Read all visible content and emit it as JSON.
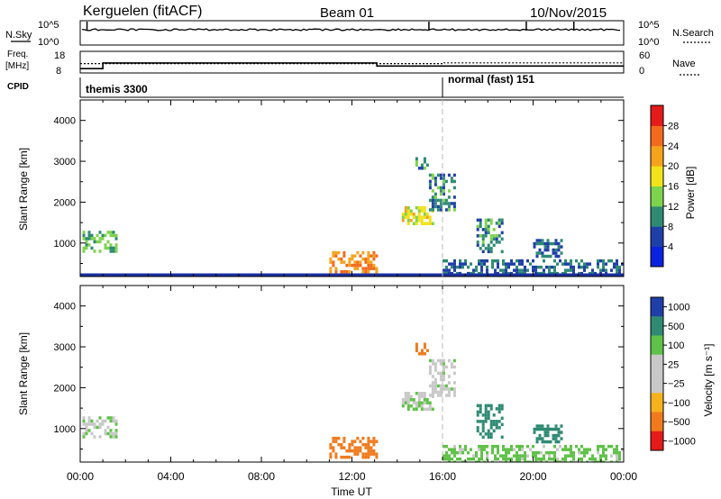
{
  "header": {
    "station": "Kerguelen (fitACF)",
    "beam": "Beam 01",
    "date": "10/Nov/2015"
  },
  "top_panels": {
    "nsky_label": "N.Sky",
    "nsky_ticks": [
      "10^5",
      "10^0"
    ],
    "nsearch_label": "N.Search",
    "nsearch_ticks": [
      "10^5",
      "10^0"
    ],
    "freq_label_1": "Freq.",
    "freq_label_2": "[MHz]",
    "freq_ticks": [
      "18",
      "8"
    ],
    "nave_label": "Nave",
    "nave_ticks": [
      "60",
      "0"
    ],
    "cpid_label": "CPID",
    "cpid_modes": [
      {
        "name": "themis 3300",
        "start_hour": 0
      },
      {
        "name": "normal (fast) 151",
        "start_hour": 16
      }
    ]
  },
  "axes": {
    "xlabel": "Time UT",
    "x_ticks": [
      "00:00",
      "04:00",
      "08:00",
      "12:00",
      "16:00",
      "20:00",
      "00:00"
    ],
    "ylabel": "Slant Range [km]",
    "y_ticks": [
      "4000",
      "3000",
      "2000",
      "1000"
    ]
  },
  "power_colorbar": {
    "label": "Power [dB]",
    "ticks": [
      "28",
      "24",
      "20",
      "16",
      "12",
      "8",
      "4"
    ],
    "colors": [
      "#0a22e0",
      "#1f3fa8",
      "#2e8a73",
      "#7ed34d",
      "#f2e21a",
      "#f5a31c",
      "#f26a1d",
      "#e51a1a"
    ]
  },
  "velocity_colorbar": {
    "label": "Velocity [m s⁻¹]",
    "ticks": [
      "1000",
      "500",
      "100",
      "25",
      "−25",
      "−100",
      "−500",
      "−1000"
    ],
    "colors": [
      "#1f3fa8",
      "#2e8a73",
      "#5fc248",
      "#c8c8c8",
      "#c8c8c8",
      "#f5b21c",
      "#f07a1d",
      "#e51a1a"
    ]
  },
  "chart_data": {
    "type": "heatmap",
    "x_range_hours": [
      0,
      24
    ],
    "y_range_km": [
      180,
      4500
    ],
    "panels": [
      "Power",
      "Velocity"
    ],
    "features": [
      {
        "start_hour": 11.0,
        "end_hour": 13.1,
        "range_km": [
          300,
          800
        ],
        "power_db": 24,
        "velocity_ms": -300
      },
      {
        "start_hour": 14.2,
        "end_hour": 15.6,
        "range_km": [
          1500,
          1900
        ],
        "power_db": 18,
        "velocity_ms": 20
      },
      {
        "start_hour": 14.8,
        "end_hour": 15.3,
        "range_km": [
          2800,
          3100
        ],
        "power_db": 10,
        "velocity_ms": -300
      },
      {
        "start_hour": 15.4,
        "end_hour": 16.5,
        "range_km": [
          1800,
          2700
        ],
        "power_db": 10,
        "velocity_ms": 10
      },
      {
        "start_hour": 0.1,
        "end_hour": 1.6,
        "range_km": [
          800,
          1300
        ],
        "power_db": 12,
        "velocity_ms": 20
      },
      {
        "start_hour": 16.0,
        "end_hour": 24.0,
        "range_km": [
          180,
          600
        ],
        "power_db": 8,
        "velocity_ms": 40
      },
      {
        "start_hour": 17.5,
        "end_hour": 18.6,
        "range_km": [
          800,
          1600
        ],
        "power_db": 10,
        "velocity_ms": 300
      },
      {
        "start_hour": 20.0,
        "end_hour": 21.2,
        "range_km": [
          700,
          1100
        ],
        "power_db": 8,
        "velocity_ms": 200
      }
    ],
    "frequency_mhz": [
      {
        "start_hour": 0.0,
        "end_hour": 1.0,
        "value": 10.0
      },
      {
        "start_hour": 1.0,
        "end_hour": 13.1,
        "value": 12.6
      },
      {
        "start_hour": 13.1,
        "end_hour": 24.0,
        "value": 11.2
      }
    ],
    "nave": [
      {
        "start_hour": 0.0,
        "end_hour": 16.0,
        "value": 26
      },
      {
        "start_hour": 16.0,
        "end_hour": 24.0,
        "value": 28
      }
    ]
  }
}
